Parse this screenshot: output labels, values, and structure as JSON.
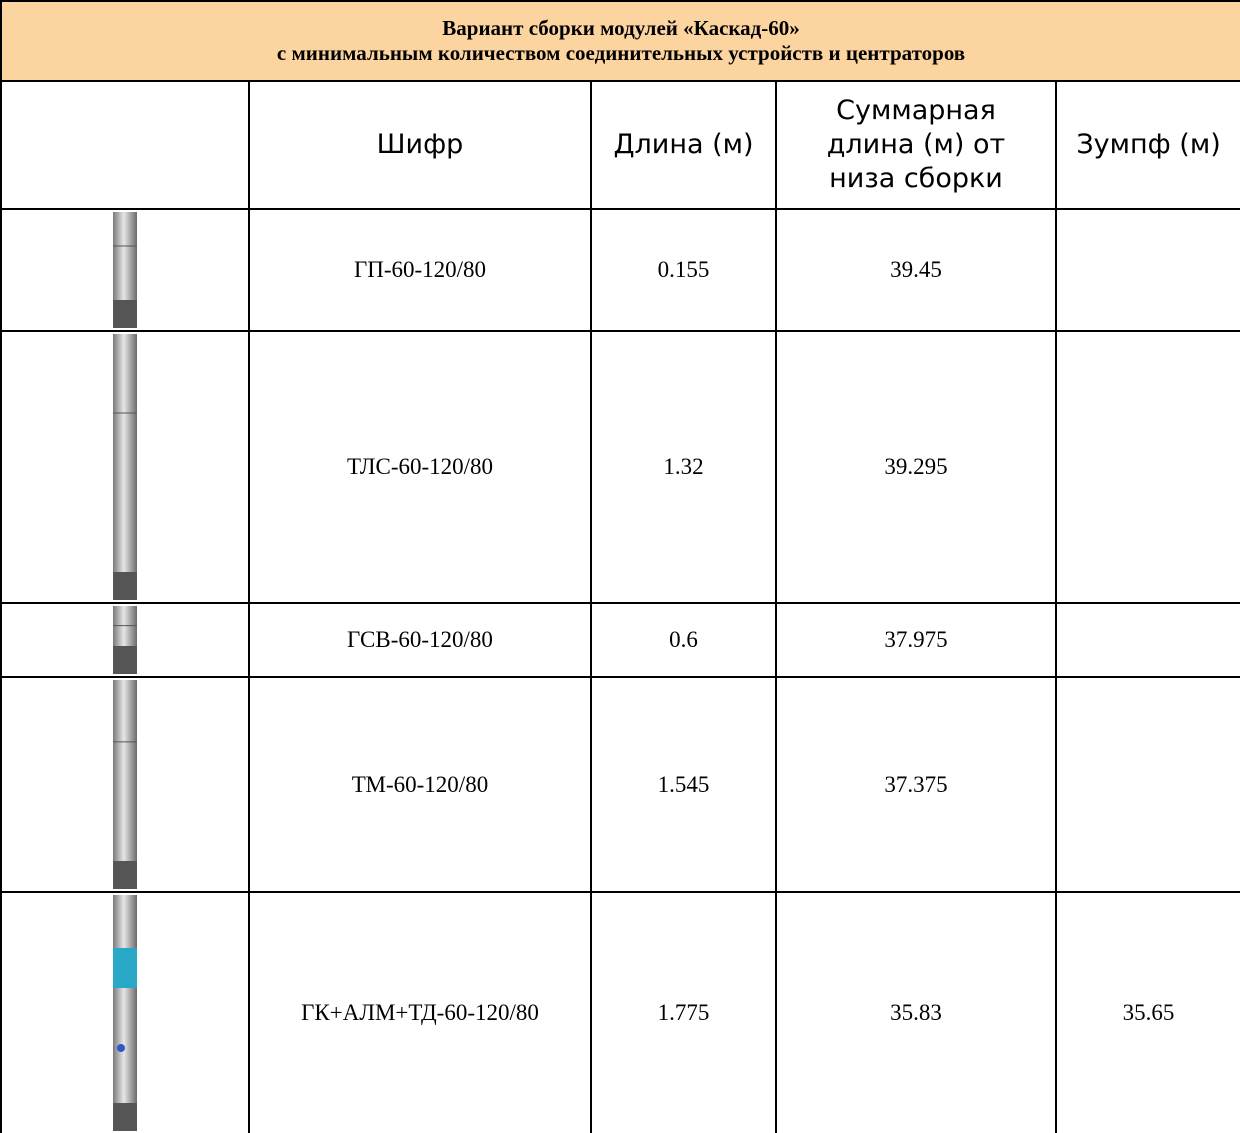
{
  "title": {
    "line1": "Вариант сборки модулей «Каскад-60»",
    "line2": "с минимальным количеством соединительных устройств и центраторов"
  },
  "table": {
    "headers": [
      "Шифр",
      "Длина (м)",
      "Суммарная длина (м) от низа сборки",
      "Зумпф (м)"
    ],
    "rows": [
      [
        "ГП-60-120/80",
        "0.155",
        "39.45",
        null
      ],
      [
        "ТЛС-60-120/80",
        "1.32",
        "39.295",
        null
      ],
      [
        "ГСВ-60-120/80",
        "0.6",
        "37.975",
        null
      ],
      [
        "ТМ-60-120/80",
        "1.545",
        "37.375",
        null
      ],
      [
        "ГК+АЛМ+ТД-60-120/80",
        "1.775",
        "35.83",
        "35.65"
      ]
    ]
  }
}
